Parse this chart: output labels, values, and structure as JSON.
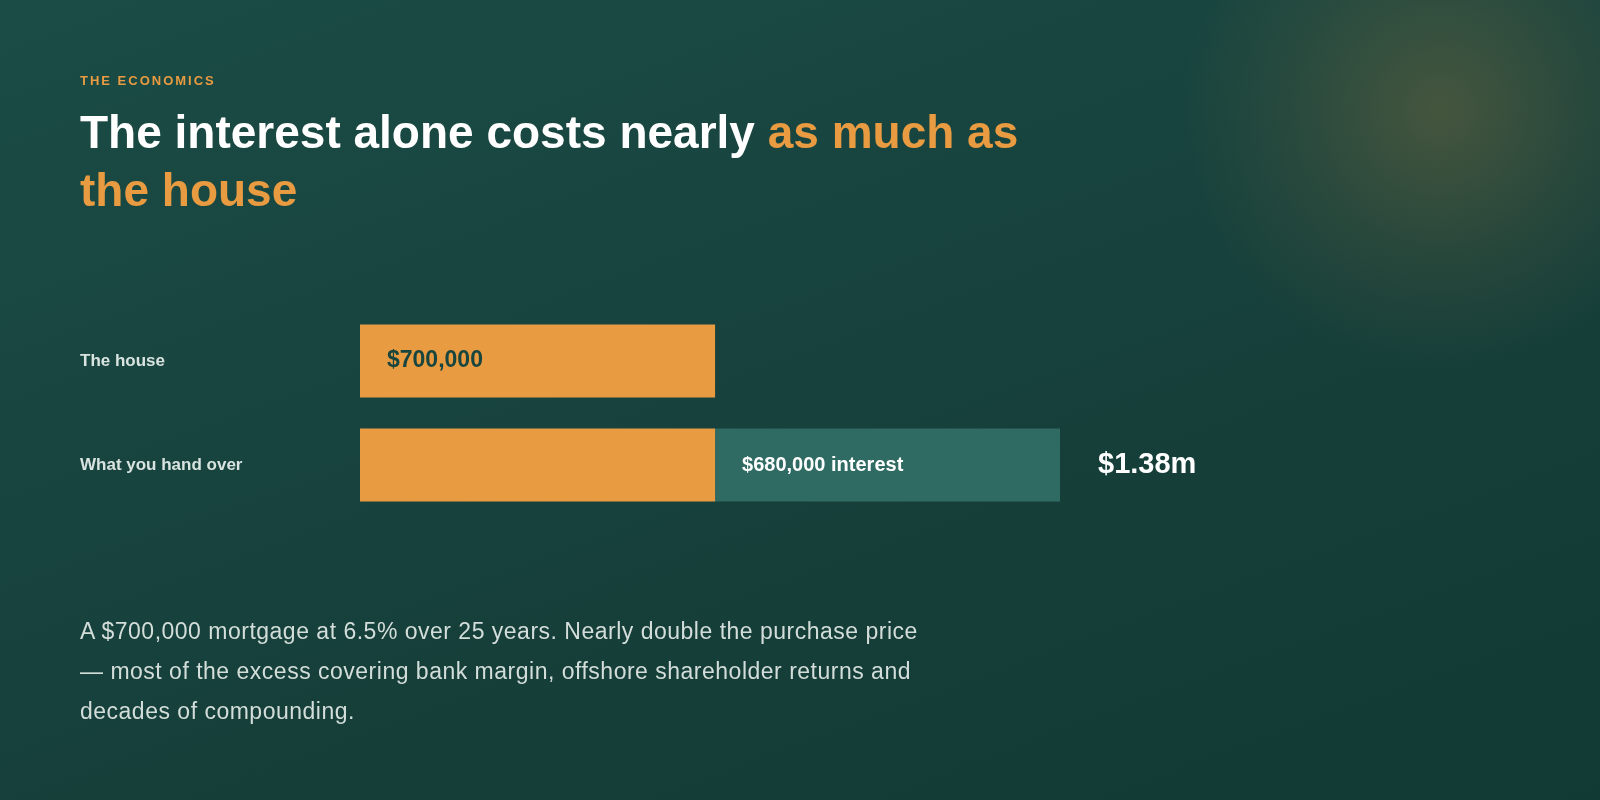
{
  "chart_data": {
    "type": "bar",
    "orientation": "horizontal",
    "stacked": true,
    "tick_labels": "y",
    "subtitle": "THE ECONOMICS",
    "title": "The interest alone costs nearly as much as the house",
    "categories": [
      "The house",
      "What you hand over"
    ],
    "series": [
      {
        "color": "#e89b40",
        "values": [
          700000,
          700000
        ],
        "value_labels": [
          "$700,000",
          null
        ]
      },
      {
        "color": "#306b63",
        "values": [
          null,
          680000
        ],
        "value_labels": [
          null,
          "$680,000 interest"
        ]
      }
    ],
    "totals": [
      null,
      "$1.38m"
    ],
    "annotations": [
      "A $700,000 mortgage at 6.5% over 25 years. Nearly double the purchase price — most of the excess covering bank margin, offshore shareholder returns and decades of compounding."
    ]
  }
}
